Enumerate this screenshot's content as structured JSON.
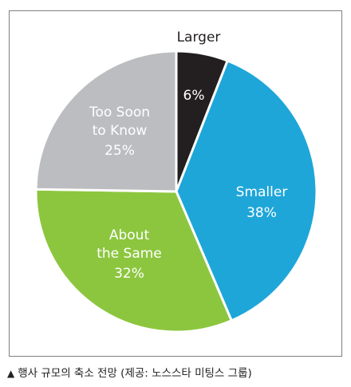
{
  "chart_data": {
    "type": "pie",
    "slices": [
      {
        "label": [
          "Larger"
        ],
        "value": 6,
        "value_label": "6%",
        "color": "#231f20",
        "text_color": "#ffffff",
        "label_outside": true
      },
      {
        "label": [
          "Smaller"
        ],
        "value": 38,
        "value_label": "38%",
        "color": "#1ea6d9",
        "text_color": "#ffffff",
        "label_outside": false
      },
      {
        "label": [
          "About",
          "the Same"
        ],
        "value": 32,
        "value_label": "32%",
        "color": "#8cc63f",
        "text_color": "#ffffff",
        "label_outside": false
      },
      {
        "label": [
          "Too Soon",
          "to Know"
        ],
        "value": 25,
        "value_label": "25%",
        "color": "#bcbdc0",
        "text_color": "#ffffff",
        "label_outside": false
      }
    ]
  },
  "caption": {
    "marker": "▲",
    "text": "행사 규모의 축소 전망 (제공: 노스스타 미팅스 그룹)"
  }
}
